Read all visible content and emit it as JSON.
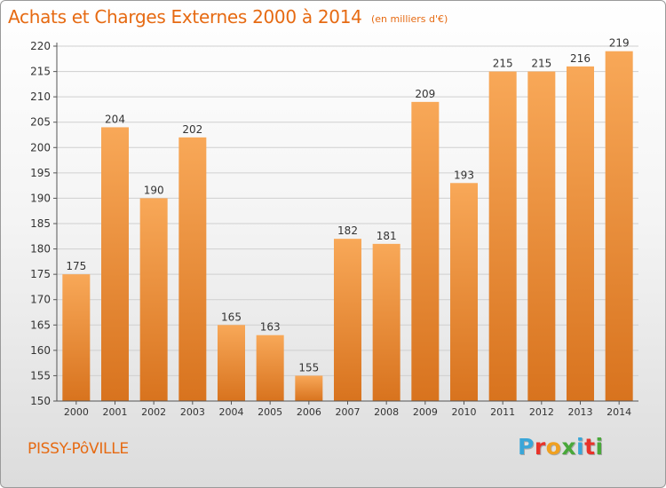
{
  "header": {
    "title": "Achats et Charges Externes 2000 à 2014",
    "unit": "(en milliers d'€)"
  },
  "footer": {
    "commune": "PISSY-PôVILLE",
    "logo_text": "Proxiti",
    "logo_colors": [
      "#3aa6d8",
      "#e8332a",
      "#f0a020",
      "#49a83a",
      "#3aa6d8",
      "#e8332a",
      "#49a83a"
    ]
  },
  "colors": {
    "bar_light": "#f8a858",
    "bar_dark": "#d8731e",
    "axis": "#555555",
    "grid": "#cfcfcf",
    "text": "#333333",
    "accent": "#e66a12"
  },
  "chart_data": {
    "type": "bar",
    "title": "Achats et Charges Externes 2000 à 2014",
    "subtitle": "(en milliers d'€)",
    "categories": [
      "2000",
      "2001",
      "2002",
      "2003",
      "2004",
      "2005",
      "2006",
      "2007",
      "2008",
      "2009",
      "2010",
      "2011",
      "2012",
      "2013",
      "2014"
    ],
    "values": [
      175,
      204,
      190,
      202,
      165,
      163,
      155,
      182,
      181,
      209,
      193,
      215,
      215,
      216,
      219
    ],
    "ylim": [
      150,
      220
    ],
    "yticks": [
      150,
      155,
      160,
      165,
      170,
      175,
      180,
      185,
      190,
      195,
      200,
      205,
      210,
      215,
      220
    ],
    "grid": true,
    "data_labels": true
  }
}
